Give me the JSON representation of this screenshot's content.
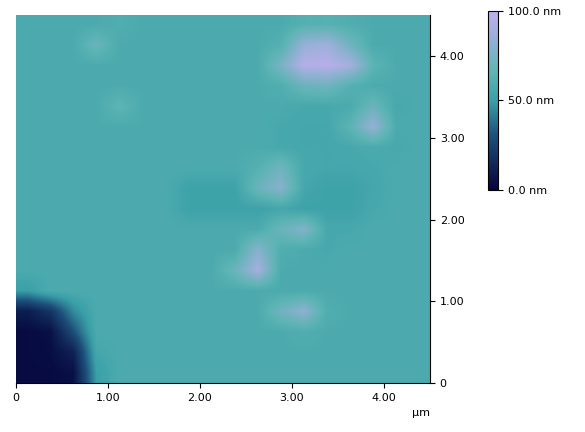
{
  "chart_data": {
    "type": "heatmap",
    "x_label": "μm",
    "xlim": [
      0,
      4.5
    ],
    "ylim": [
      0,
      4.5
    ],
    "xticks": [
      0,
      {
        "value": 1,
        "label": "1.00"
      },
      {
        "value": 2,
        "label": "2.00"
      },
      {
        "value": 3,
        "label": "3.00"
      },
      {
        "value": 4,
        "label": "4.00"
      }
    ],
    "yticks": [
      0,
      {
        "value": 1,
        "label": "1.00"
      },
      {
        "value": 2,
        "label": "2.00"
      },
      {
        "value": 3,
        "label": "3.00"
      },
      {
        "value": 4,
        "label": "4.00"
      }
    ],
    "color_range": [
      0,
      100
    ],
    "color_ticks": [
      {
        "value": 0,
        "label": "0.0 nm"
      },
      {
        "value": 50,
        "label": "50.0 nm"
      },
      {
        "value": 100,
        "label": "100.0 nm"
      }
    ],
    "cells": [
      [
        58,
        58,
        58,
        58,
        60,
        58,
        58,
        58,
        58,
        58,
        58,
        58,
        62,
        63,
        60,
        58,
        58,
        58
      ],
      [
        58,
        58,
        58,
        70,
        58,
        58,
        58,
        58,
        58,
        58,
        58,
        62,
        85,
        88,
        72,
        58,
        58,
        58
      ],
      [
        58,
        58,
        58,
        58,
        58,
        58,
        58,
        58,
        58,
        58,
        58,
        75,
        95,
        96,
        90,
        65,
        58,
        58
      ],
      [
        58,
        58,
        58,
        58,
        58,
        58,
        58,
        58,
        58,
        58,
        58,
        60,
        70,
        72,
        62,
        58,
        58,
        58
      ],
      [
        58,
        58,
        58,
        58,
        66,
        58,
        58,
        58,
        58,
        58,
        58,
        58,
        56,
        56,
        58,
        70,
        56,
        58
      ],
      [
        58,
        58,
        58,
        58,
        58,
        58,
        58,
        58,
        58,
        58,
        58,
        56,
        55,
        55,
        65,
        85,
        58,
        58
      ],
      [
        58,
        58,
        58,
        58,
        58,
        58,
        58,
        58,
        58,
        58,
        58,
        56,
        55,
        55,
        56,
        58,
        56,
        58
      ],
      [
        58,
        58,
        58,
        58,
        58,
        58,
        58,
        58,
        58,
        58,
        62,
        72,
        56,
        55,
        55,
        56,
        58,
        58
      ],
      [
        58,
        58,
        58,
        58,
        58,
        58,
        58,
        52,
        52,
        52,
        70,
        80,
        55,
        52,
        52,
        55,
        58,
        58
      ],
      [
        58,
        58,
        58,
        58,
        58,
        58,
        58,
        52,
        52,
        52,
        52,
        55,
        52,
        52,
        52,
        56,
        58,
        58
      ],
      [
        58,
        58,
        58,
        58,
        58,
        58,
        58,
        58,
        58,
        58,
        58,
        70,
        78,
        56,
        56,
        58,
        58,
        58
      ],
      [
        58,
        58,
        58,
        58,
        58,
        58,
        58,
        58,
        58,
        58,
        80,
        60,
        58,
        56,
        58,
        58,
        58,
        58
      ],
      [
        58,
        58,
        58,
        58,
        58,
        58,
        58,
        58,
        58,
        70,
        90,
        58,
        58,
        58,
        58,
        58,
        58,
        58
      ],
      [
        50,
        58,
        58,
        58,
        58,
        58,
        58,
        58,
        58,
        58,
        58,
        58,
        58,
        58,
        58,
        58,
        58,
        58
      ],
      [
        10,
        20,
        45,
        58,
        58,
        58,
        58,
        58,
        58,
        58,
        58,
        72,
        82,
        60,
        58,
        58,
        58,
        58
      ],
      [
        3,
        5,
        30,
        58,
        58,
        58,
        58,
        58,
        58,
        58,
        58,
        58,
        60,
        58,
        58,
        58,
        58,
        58
      ],
      [
        3,
        4,
        12,
        55,
        58,
        58,
        58,
        58,
        58,
        58,
        58,
        58,
        58,
        58,
        58,
        58,
        58,
        58
      ],
      [
        3,
        3,
        5,
        50,
        58,
        58,
        58,
        58,
        58,
        58,
        58,
        58,
        58,
        58,
        58,
        58,
        58,
        58
      ]
    ]
  }
}
